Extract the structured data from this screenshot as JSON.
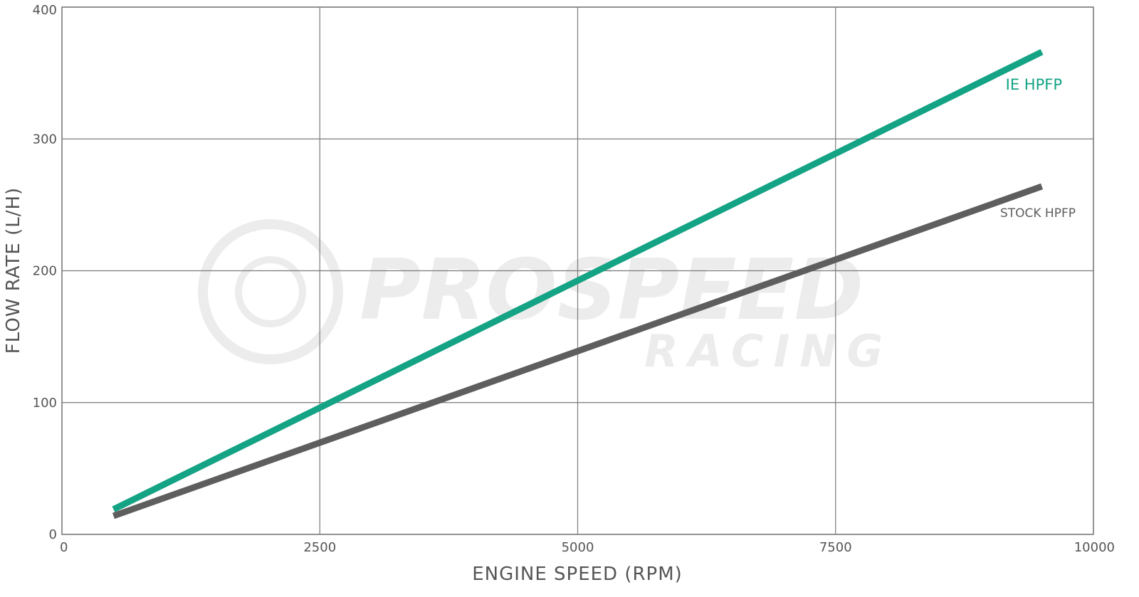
{
  "chart_data": {
    "type": "line",
    "title": "",
    "xlabel": "ENGINE SPEED (RPM)",
    "ylabel": "FLOW RATE (L/H)",
    "xlim": [
      0,
      10000
    ],
    "ylim": [
      0,
      400
    ],
    "xticks": [
      0,
      2500,
      5000,
      7500,
      10000
    ],
    "yticks": [
      0,
      100,
      200,
      300,
      400
    ],
    "grid": true,
    "series": [
      {
        "name": "IE HPFP",
        "color": "#14a384",
        "x": [
          500,
          9500
        ],
        "y": [
          19,
          366
        ]
      },
      {
        "name": "STOCK HPFP",
        "color": "#5e5e5e",
        "x": [
          500,
          9500
        ],
        "y": [
          14,
          264
        ]
      }
    ]
  },
  "watermark": {
    "line1": "PROSPEED",
    "line2": "RACING"
  }
}
